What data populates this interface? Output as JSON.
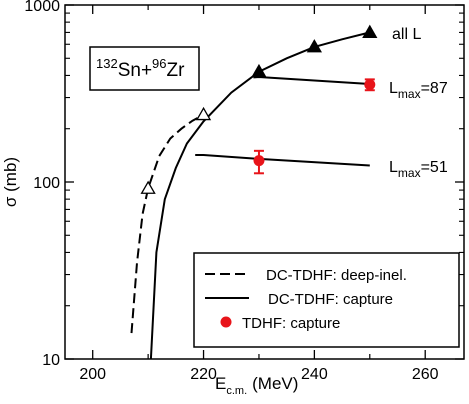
{
  "chart_data": {
    "type": "line",
    "xlabel": "E",
    "xlabel_sub": "c.m.",
    "xlabel_unit": "(MeV)",
    "ylabel": "σ (mb)",
    "xlim": [
      195,
      267
    ],
    "ylim": [
      10,
      1000
    ],
    "y_scale": "log",
    "x_ticks": [
      200,
      220,
      240,
      260
    ],
    "y_ticks": [
      10,
      100,
      1000
    ],
    "reaction_label": {
      "mass1": "132",
      "elem1": "Sn+",
      "mass2": "96",
      "elem2": "Zr"
    },
    "series": [
      {
        "name": "DC-TDHF: deep-inel.",
        "style": "dashed",
        "points": [
          [
            207,
            14
          ],
          [
            208,
            35
          ],
          [
            209,
            66
          ],
          [
            210,
            92
          ],
          [
            212,
            140
          ],
          [
            214,
            176
          ],
          [
            216,
            200
          ],
          [
            218,
            222
          ],
          [
            220,
            240
          ]
        ],
        "markers": {
          "shape": "triangle-open",
          "points": [
            [
              210,
              92
            ],
            [
              220,
              240
            ]
          ]
        }
      },
      {
        "name": "DC-TDHF: capture",
        "style": "solid",
        "curves": [
          {
            "label": "all L",
            "points": [
              [
                210.5,
                10
              ],
              [
                211.5,
                40
              ],
              [
                213,
                80
              ],
              [
                215,
                120
              ],
              [
                217,
                165
              ],
              [
                220,
                220
              ],
              [
                225,
                320
              ],
              [
                230,
                420
              ],
              [
                235,
                500
              ],
              [
                240,
                580
              ],
              [
                245,
                640
              ],
              [
                250,
                700
              ]
            ]
          },
          {
            "label": "L",
            "label_sub": "max",
            "label_value": "=87",
            "points": [
              [
                229,
                390
              ],
              [
                230,
                392
              ],
              [
                250,
                358
              ]
            ]
          },
          {
            "label": "L",
            "label_sub": "max",
            "label_value": "=51",
            "points": [
              [
                218.5,
                142
              ],
              [
                220,
                142
              ],
              [
                230,
                135
              ],
              [
                250,
                124
              ]
            ]
          }
        ],
        "markers": {
          "shape": "triangle-filled",
          "points": [
            [
              230,
              420
            ],
            [
              240,
              580
            ],
            [
              250,
              700
            ]
          ]
        }
      },
      {
        "name": "TDHF: capture",
        "style": "markers",
        "color": "#e8141a",
        "points": [
          {
            "x": 230,
            "y": 132,
            "err_low": 112,
            "err_high": 150
          },
          {
            "x": 250,
            "y": 355,
            "err_low": 330,
            "err_high": 380
          }
        ]
      }
    ],
    "legend": {
      "placement": "bottom-right",
      "entries": [
        "DC-TDHF: deep-inel.",
        "DC-TDHF: capture",
        "TDHF: capture"
      ]
    }
  }
}
